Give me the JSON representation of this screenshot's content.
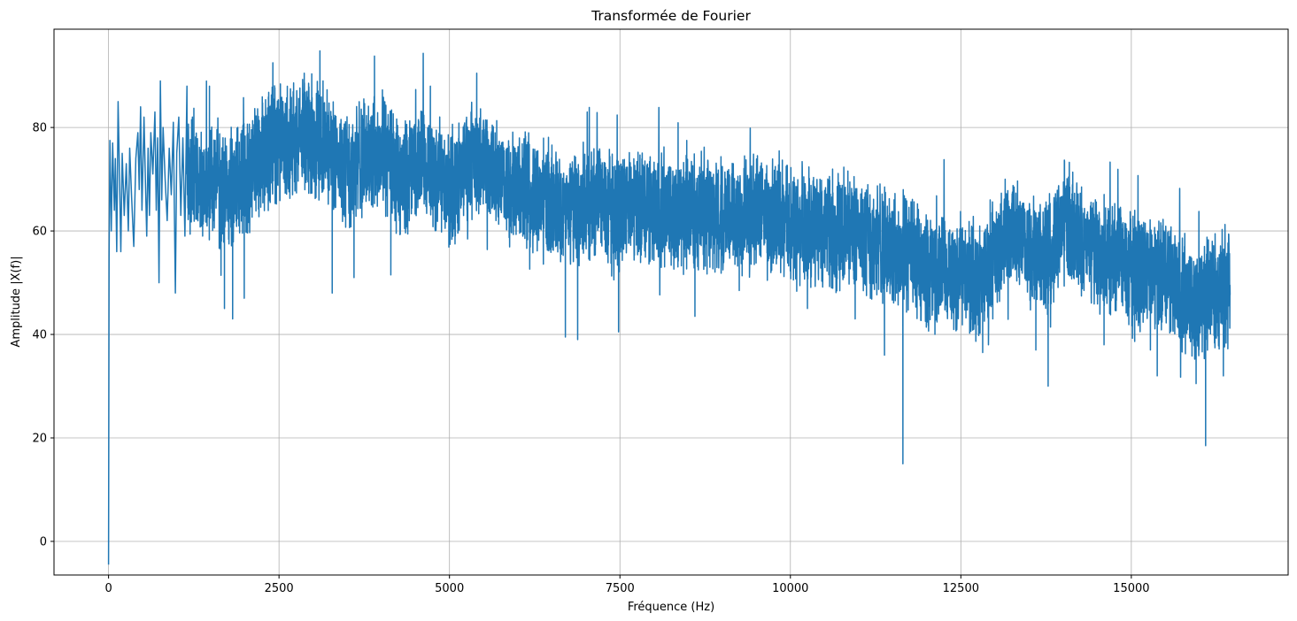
{
  "chart_data": {
    "type": "line",
    "title": "Transformée de Fourier",
    "xlabel": "Fréquence (Hz)",
    "ylabel": "Amplitude |X(f)|",
    "xlim": [
      -800,
      17300
    ],
    "ylim": [
      -6.5,
      99
    ],
    "grid": true,
    "series_color": "#1f77b4",
    "x_ticks": [
      0,
      2500,
      5000,
      7500,
      10000,
      12500,
      15000
    ],
    "x_tick_labels": [
      "0",
      "2500",
      "5000",
      "7500",
      "10000",
      "12500",
      "15000"
    ],
    "y_ticks": [
      0,
      20,
      40,
      60,
      80
    ],
    "y_tick_labels": [
      "0",
      "20",
      "40",
      "60",
      "80"
    ],
    "series": [
      {
        "x": [
          0,
          250,
          500,
          750,
          1000,
          1250,
          1500,
          1750,
          2000,
          2250,
          2500,
          2750,
          3000,
          3250,
          3500,
          3750,
          4000,
          4250,
          4500,
          4750,
          5000,
          5250,
          5500,
          5750,
          6000,
          6250,
          6500,
          6750,
          7000,
          7250,
          7500,
          7750,
          8000,
          8250,
          8500,
          8750,
          9000,
          9250,
          9500,
          9750,
          10000,
          10250,
          10500,
          10750,
          11000,
          11250,
          11500,
          11750,
          12000,
          12250,
          12500,
          12750,
          13000,
          13250,
          13500,
          13750,
          14000,
          14250,
          14500,
          14750,
          15000,
          15250,
          15500,
          15750,
          16000,
          16250,
          16500
        ],
        "values": [
          55,
          70,
          72,
          73,
          71,
          69,
          70,
          67,
          70,
          76,
          77,
          78,
          79,
          75,
          72,
          74,
          75,
          70,
          73,
          72,
          68,
          74,
          73,
          70,
          68,
          67,
          65,
          64,
          66,
          65,
          63,
          65,
          64,
          65,
          63,
          64,
          62,
          63,
          64,
          63,
          62,
          61,
          61,
          60,
          60,
          58,
          56,
          55,
          53,
          52,
          52,
          51,
          55,
          60,
          57,
          54,
          62,
          58,
          56,
          55,
          52,
          51,
          52,
          48,
          47,
          48,
          50
        ],
        "dense_range": [
          8,
          1150
        ],
        "dense_points": [
          [
            0,
            -4.5
          ],
          [
            8,
            55
          ],
          [
            20,
            77.5
          ],
          [
            40,
            60
          ],
          [
            60,
            77
          ],
          [
            85,
            64
          ],
          [
            100,
            74
          ],
          [
            120,
            56
          ],
          [
            140,
            85
          ],
          [
            160,
            71
          ],
          [
            180,
            56
          ],
          [
            200,
            75
          ],
          [
            230,
            63
          ],
          [
            260,
            73
          ],
          [
            290,
            60
          ],
          [
            310,
            76
          ],
          [
            340,
            66
          ],
          [
            370,
            57
          ],
          [
            400,
            74
          ],
          [
            430,
            79
          ],
          [
            450,
            68
          ],
          [
            470,
            84
          ],
          [
            490,
            64
          ],
          [
            520,
            82
          ],
          [
            540,
            70
          ],
          [
            560,
            59
          ],
          [
            580,
            76
          ],
          [
            600,
            63
          ],
          [
            620,
            79
          ],
          [
            650,
            71
          ],
          [
            680,
            83
          ],
          [
            700,
            64
          ],
          [
            720,
            78
          ],
          [
            740,
            50
          ],
          [
            760,
            89
          ],
          [
            780,
            66
          ],
          [
            800,
            80
          ],
          [
            830,
            70
          ],
          [
            860,
            62
          ],
          [
            890,
            76
          ],
          [
            920,
            67
          ],
          [
            950,
            81
          ],
          [
            980,
            48
          ],
          [
            1000,
            75
          ],
          [
            1030,
            82
          ],
          [
            1060,
            63
          ],
          [
            1090,
            78
          ],
          [
            1120,
            59
          ],
          [
            1150,
            88
          ]
        ],
        "spikes": [
          [
            1230,
            82
          ],
          [
            1380,
            59
          ],
          [
            1480,
            88
          ],
          [
            1540,
            62
          ],
          [
            1700,
            45
          ],
          [
            1820,
            43
          ],
          [
            1990,
            47
          ],
          [
            2410,
            92.5
          ],
          [
            2550,
            85
          ],
          [
            2870,
            90.5
          ],
          [
            3100,
            94.8
          ],
          [
            3280,
            48
          ],
          [
            3600,
            51
          ],
          [
            3900,
            93.8
          ],
          [
            4140,
            51.5
          ],
          [
            4720,
            88
          ],
          [
            5260,
            62
          ],
          [
            5400,
            90.5
          ],
          [
            6700,
            39.5
          ],
          [
            6880,
            39
          ],
          [
            7020,
            83
          ],
          [
            7480,
            40.5
          ],
          [
            8480,
            77.5
          ],
          [
            8600,
            43.5
          ],
          [
            9250,
            48.5
          ],
          [
            10250,
            45
          ],
          [
            10400,
            58
          ],
          [
            10950,
            43
          ],
          [
            11380,
            36
          ],
          [
            11650,
            15
          ],
          [
            12120,
            40
          ],
          [
            12820,
            36.5
          ],
          [
            12930,
            66
          ],
          [
            13150,
            70
          ],
          [
            13600,
            37
          ],
          [
            13780,
            30
          ],
          [
            14020,
            73.5
          ],
          [
            14270,
            68.5
          ],
          [
            14600,
            38
          ],
          [
            15050,
            64
          ],
          [
            15280,
            37
          ],
          [
            15380,
            32
          ],
          [
            15780,
            57
          ],
          [
            15950,
            30.5
          ],
          [
            16090,
            18.5
          ],
          [
            16350,
            32
          ],
          [
            16450,
            58.5
          ]
        ]
      }
    ]
  }
}
